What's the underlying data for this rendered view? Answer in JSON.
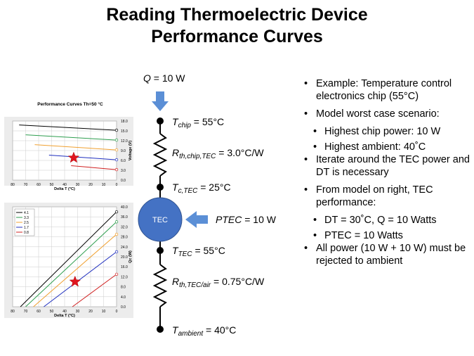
{
  "title": "Reading Thermoelectric Device Performance Curves",
  "charts": [
    {
      "type": "line",
      "title": "Performance Curves Th=50 °C",
      "xlabel": "Delta T (°C)",
      "ylabel": "Voltage (V)",
      "xlim": [
        80,
        0
      ],
      "xticks": [
        80,
        70,
        60,
        50,
        40,
        30,
        20,
        10,
        0
      ],
      "ylim": [
        0,
        18
      ],
      "yticks": [
        {
          "value": 0,
          "label": "0.0"
        },
        {
          "value": 3,
          "label": "3.0"
        },
        {
          "value": 6,
          "label": "6.0"
        },
        {
          "value": 9,
          "label": "9.0"
        },
        {
          "value": 12,
          "label": "12.0"
        },
        {
          "value": 15,
          "label": "15.0"
        },
        {
          "value": 18,
          "label": "18.0"
        }
      ],
      "grid": true,
      "series": [
        {
          "color": "#000000",
          "x": [
            75,
            0
          ],
          "values": [
            16.8,
            15.2
          ]
        },
        {
          "color": "#2e9e4f",
          "x": [
            70,
            0
          ],
          "values": [
            13.8,
            12.2
          ]
        },
        {
          "color": "#f0a030",
          "x": [
            63,
            0
          ],
          "values": [
            10.8,
            9.2
          ]
        },
        {
          "color": "#1f2fbf",
          "x": [
            52,
            0
          ],
          "values": [
            7.6,
            6.2
          ]
        },
        {
          "color": "#d02020",
          "x": [
            35,
            0
          ],
          "values": [
            4.4,
            3.2
          ]
        }
      ],
      "star": {
        "x": 33,
        "y": 6.8
      }
    },
    {
      "type": "line",
      "xlabel": "Delta T (°C)",
      "ylabel": "Qc (W)",
      "xlim": [
        80,
        0
      ],
      "xticks": [
        80,
        70,
        60,
        50,
        40,
        30,
        20,
        10,
        0
      ],
      "ylim": [
        0,
        40
      ],
      "yticks": [
        {
          "value": 0,
          "label": "0.0"
        },
        {
          "value": 4,
          "label": "4.0"
        },
        {
          "value": 8,
          "label": "8.0"
        },
        {
          "value": 12,
          "label": "12.0"
        },
        {
          "value": 16,
          "label": "16.0"
        },
        {
          "value": 20,
          "label": "20.0"
        },
        {
          "value": 24,
          "label": "24.0"
        },
        {
          "value": 28,
          "label": "28.0"
        },
        {
          "value": 32,
          "label": "32.0"
        },
        {
          "value": 36,
          "label": "36.0"
        },
        {
          "value": 40,
          "label": "40.0"
        }
      ],
      "grid": true,
      "series": [
        {
          "name": "4.1",
          "color": "#000000",
          "x": [
            74,
            0
          ],
          "values": [
            0,
            38
          ]
        },
        {
          "name": "3.3",
          "color": "#2e9e4f",
          "x": [
            70,
            0
          ],
          "values": [
            0,
            34
          ]
        },
        {
          "name": "2.5",
          "color": "#f0a030",
          "x": [
            64,
            0
          ],
          "values": [
            0,
            29
          ]
        },
        {
          "name": "1.7",
          "color": "#1f2fbf",
          "x": [
            56,
            0
          ],
          "values": [
            0,
            22
          ]
        },
        {
          "name": "0.8",
          "color": "#d02020",
          "x": [
            34,
            0
          ],
          "values": [
            0,
            13
          ]
        }
      ],
      "star": {
        "x": 32,
        "y": 10
      }
    }
  ],
  "diagram": {
    "tec": "TEC",
    "labels": [
      {
        "symbol": "Q",
        "text": " = 10 W"
      },
      {
        "symbol": "T",
        "sub": "chip",
        "text": " = 55°C"
      },
      {
        "symbol": "R",
        "sub": "th,chip,TEC",
        "text": " = 3.0°C/W"
      },
      {
        "symbol": "T",
        "sub": "c,TEC",
        "text": " = 25°C"
      },
      {
        "symbol": "PTEC",
        "text": " = 10 W"
      },
      {
        "symbol": "T",
        "sub": "TEC",
        "text": " = 55°C"
      },
      {
        "symbol": "R",
        "sub": "th,TEC/air",
        "text": " = 0.75°C/W"
      },
      {
        "symbol": "T",
        "sub": "ambient",
        "text": " = 40°C"
      }
    ]
  },
  "bullets": [
    {
      "text": "Example: Temperature control electronics chip (55°C)"
    },
    {
      "text": "Model worst case scenario:",
      "items": [
        "Highest chip power: 10 W",
        "Highest ambient: 40˚C"
      ]
    },
    {
      "text": "Iterate around the TEC power and DT is necessary"
    },
    {
      "text": "From model on right, TEC performance:",
      "items": [
        "DT = 30˚C, Q = 10 Watts",
        "PTEC = 10 Watts"
      ]
    },
    {
      "text": "All power (10 W + 10 W) must be rejected to ambient"
    }
  ]
}
